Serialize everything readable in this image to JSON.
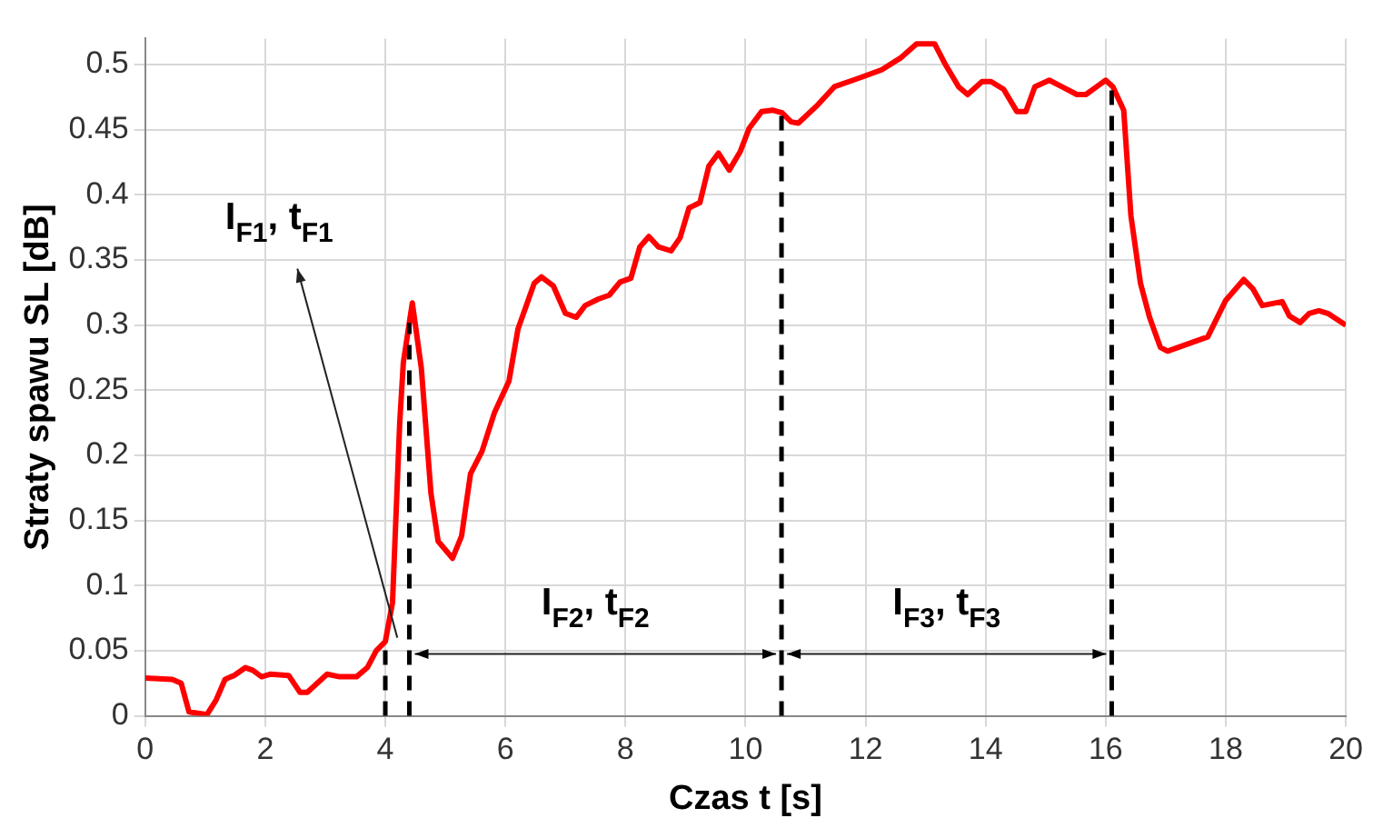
{
  "chart_data": {
    "type": "line",
    "xlabel": "Czas t [s]",
    "ylabel": "Straty spawu SL [dB]",
    "xlim": [
      0,
      20
    ],
    "ylim": [
      0,
      0.52
    ],
    "xticks": [
      0,
      2,
      4,
      6,
      8,
      10,
      12,
      14,
      16,
      18,
      20
    ],
    "yticks": [
      0,
      {
        "value": 0.05,
        "label": "0.05"
      },
      {
        "value": 0.1,
        "label": "0.1"
      },
      {
        "value": 0.15,
        "label": "0.15"
      },
      {
        "value": 0.2,
        "label": "0.2"
      },
      {
        "value": 0.25,
        "label": "0.25"
      },
      {
        "value": 0.3,
        "label": "0.3"
      },
      {
        "value": 0.35,
        "label": "0.35"
      },
      {
        "value": 0.4,
        "label": "0.4"
      },
      {
        "value": 0.45,
        "label": "0.45"
      },
      {
        "value": 0.5,
        "label": "0.5"
      }
    ],
    "grid": true,
    "legend": false,
    "marker": "none",
    "line_style": "solid",
    "series": [
      {
        "color": "#ff0000",
        "x": [
          0,
          0.45,
          0.6,
          0.73,
          1.03,
          1.18,
          1.33,
          1.48,
          1.67,
          1.79,
          1.94,
          2.09,
          2.39,
          2.58,
          2.7,
          3.03,
          3.24,
          3.52,
          3.7,
          3.85,
          4.0,
          4.12,
          4.24,
          4.3,
          4.45,
          4.6,
          4.76,
          4.88,
          5.12,
          5.27,
          5.42,
          5.61,
          5.82,
          6.06,
          6.21,
          6.48,
          6.6,
          6.8,
          7.0,
          7.18,
          7.33,
          7.55,
          7.73,
          7.91,
          8.09,
          8.24,
          8.39,
          8.55,
          8.76,
          8.91,
          9.06,
          9.24,
          9.39,
          9.55,
          9.73,
          9.91,
          10.06,
          10.27,
          10.45,
          10.61,
          10.76,
          10.88,
          11.18,
          11.48,
          11.79,
          11.97,
          12.27,
          12.58,
          12.85,
          13.15,
          13.33,
          13.55,
          13.7,
          13.94,
          14.09,
          14.3,
          14.52,
          14.67,
          14.82,
          15.06,
          15.27,
          15.52,
          15.67,
          15.85,
          16.0,
          16.12,
          16.3,
          16.42,
          16.58,
          16.73,
          16.91,
          17.03,
          17.7,
          18.0,
          18.3,
          18.45,
          18.61,
          18.94,
          19.06,
          19.24,
          19.39,
          19.55,
          19.7,
          20.0
        ],
        "values": [
          0.029,
          0.028,
          0.025,
          0.003,
          0.001,
          0.012,
          0.028,
          0.031,
          0.037,
          0.035,
          0.03,
          0.032,
          0.031,
          0.018,
          0.018,
          0.032,
          0.03,
          0.03,
          0.037,
          0.05,
          0.057,
          0.087,
          0.225,
          0.271,
          0.317,
          0.267,
          0.171,
          0.134,
          0.121,
          0.138,
          0.186,
          0.203,
          0.233,
          0.257,
          0.297,
          0.332,
          0.337,
          0.33,
          0.309,
          0.306,
          0.315,
          0.32,
          0.323,
          0.333,
          0.336,
          0.36,
          0.368,
          0.36,
          0.357,
          0.367,
          0.39,
          0.394,
          0.422,
          0.432,
          0.419,
          0.433,
          0.451,
          0.464,
          0.465,
          0.463,
          0.456,
          0.455,
          0.468,
          0.483,
          0.488,
          0.491,
          0.496,
          0.505,
          0.516,
          0.516,
          0.5,
          0.483,
          0.477,
          0.487,
          0.487,
          0.481,
          0.464,
          0.464,
          0.483,
          0.488,
          0.483,
          0.477,
          0.477,
          0.483,
          0.488,
          0.483,
          0.465,
          0.384,
          0.332,
          0.306,
          0.283,
          0.28,
          0.291,
          0.319,
          0.335,
          0.328,
          0.315,
          0.318,
          0.307,
          0.302,
          0.309,
          0.311,
          0.309,
          0.3
        ]
      }
    ],
    "ref_lines": [
      {
        "axis": "x",
        "value": 4.0,
        "color": "#000000",
        "line_style": "dashed"
      },
      {
        "axis": "x",
        "value": 4.4,
        "color": "#000000",
        "line_style": "dashed"
      },
      {
        "axis": "x",
        "value": 10.6,
        "color": "#000000",
        "line_style": "dashed"
      },
      {
        "axis": "x",
        "value": 16.1,
        "color": "#000000",
        "line_style": "dashed"
      }
    ],
    "annotations": [
      {
        "text": "I$_{F1}$, t$_{F1}$",
        "x": 4.2,
        "y": 0.06
      },
      "I$_{F2}$, t$_{F2}$",
      "I$_{F3}$, t$_{F3}$"
    ]
  }
}
